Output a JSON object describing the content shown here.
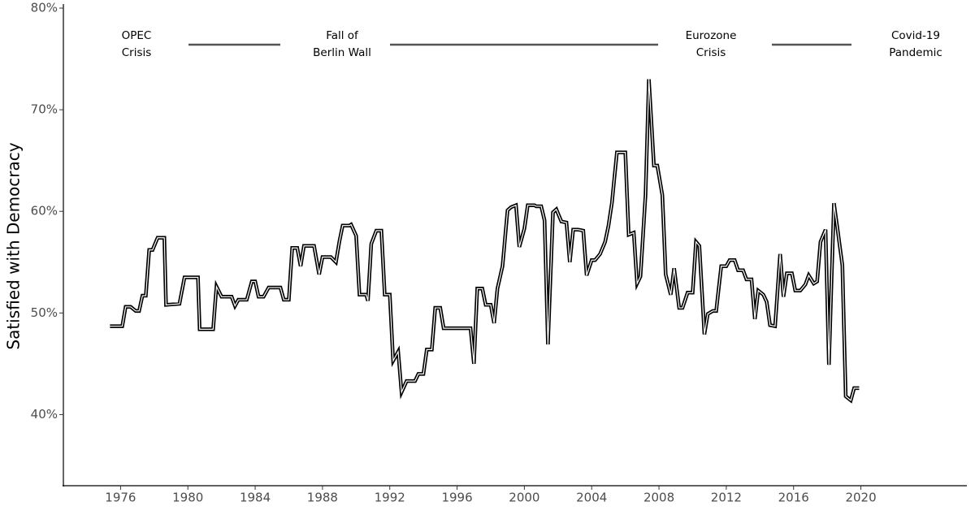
{
  "chart_data": {
    "type": "line",
    "y_label": "Satisfied with Democracy",
    "color": "#000000",
    "x": [
      1975.37,
      1976.1,
      1976.3,
      1976.6,
      1976.9,
      1977.1,
      1977.3,
      1977.5,
      1977.7,
      1977.9,
      1978.2,
      1978.6,
      1978.7,
      1979.5,
      1979.8,
      1980.6,
      1980.7,
      1981.5,
      1981.7,
      1982.0,
      1982.6,
      1982.8,
      1983.0,
      1983.5,
      1983.8,
      1984.0,
      1984.2,
      1984.5,
      1984.8,
      1985.5,
      1985.7,
      1986.0,
      1986.2,
      1986.5,
      1986.7,
      1986.9,
      1987.5,
      1987.8,
      1988.0,
      1988.5,
      1988.8,
      1989.0,
      1989.2,
      1989.6,
      1989.7,
      1990.0,
      1990.2,
      1990.6,
      1990.7,
      1990.9,
      1991.2,
      1991.5,
      1991.7,
      1992.0,
      1992.2,
      1992.5,
      1992.7,
      1993.0,
      1993.5,
      1993.7,
      1994.0,
      1994.2,
      1994.5,
      1994.7,
      1995.0,
      1995.2,
      1996.8,
      1997.0,
      1997.2,
      1997.5,
      1997.7,
      1998.0,
      1998.2,
      1998.4,
      1998.7,
      1999.0,
      1999.2,
      1999.5,
      1999.7,
      2000.0,
      2000.2,
      2000.6,
      2000.7,
      2001.0,
      2001.2,
      2001.4,
      2001.7,
      2001.9,
      2002.2,
      2002.5,
      2002.7,
      2002.9,
      2003.2,
      2003.5,
      2003.7,
      2004.0,
      2004.2,
      2004.5,
      2004.8,
      2005.0,
      2005.2,
      2005.5,
      2006.0,
      2006.2,
      2006.5,
      2006.7,
      2006.9,
      2007.2,
      2007.4,
      2007.7,
      2007.9,
      2008.2,
      2008.4,
      2008.7,
      2008.9,
      2009.2,
      2009.4,
      2009.7,
      2010.0,
      2010.2,
      2010.4,
      2010.7,
      2010.9,
      2011.2,
      2011.4,
      2011.7,
      2012.0,
      2012.2,
      2012.5,
      2012.7,
      2013.0,
      2013.2,
      2013.5,
      2013.7,
      2013.9,
      2014.2,
      2014.4,
      2014.6,
      2014.9,
      2015.2,
      2015.4,
      2015.6,
      2015.9,
      2016.1,
      2016.4,
      2016.7,
      2016.9,
      2017.2,
      2017.4,
      2017.6,
      2017.9,
      2018.1,
      2018.4,
      2018.6,
      2018.9,
      2019.1,
      2019.4,
      2019.6,
      2019.9
    ],
    "values": [
      48.7,
      48.7,
      50.6,
      50.6,
      50.2,
      50.2,
      51.7,
      51.7,
      56.2,
      56.2,
      57.4,
      57.4,
      50.8,
      50.9,
      53.5,
      53.5,
      48.4,
      48.4,
      52.6,
      51.6,
      51.6,
      50.7,
      51.3,
      51.3,
      53.1,
      53.1,
      51.6,
      51.6,
      52.5,
      52.5,
      51.3,
      51.3,
      56.4,
      56.4,
      54.6,
      56.6,
      56.6,
      53.8,
      55.5,
      55.5,
      55.0,
      57.0,
      58.6,
      58.6,
      58.7,
      57.6,
      51.8,
      51.8,
      51.2,
      56.8,
      58.1,
      58.1,
      51.8,
      51.8,
      45.3,
      46.2,
      42.2,
      43.3,
      43.3,
      44.0,
      44.0,
      46.4,
      46.4,
      50.5,
      50.5,
      48.5,
      48.5,
      45.0,
      52.4,
      52.4,
      50.8,
      50.8,
      49.0,
      52.4,
      54.6,
      60.1,
      60.4,
      60.6,
      56.5,
      58.3,
      60.6,
      60.6,
      60.5,
      60.5,
      59.1,
      46.9,
      59.9,
      60.2,
      59.0,
      58.9,
      55.0,
      58.2,
      58.2,
      58.1,
      53.7,
      55.2,
      55.2,
      55.8,
      57.0,
      58.6,
      60.8,
      65.8,
      65.8,
      57.7,
      57.9,
      52.9,
      53.6,
      61.6,
      73.0,
      64.5,
      64.5,
      61.6,
      53.8,
      51.8,
      54.4,
      50.5,
      50.5,
      52.0,
      52.0,
      57.0,
      56.6,
      47.9,
      49.9,
      50.2,
      50.2,
      54.6,
      54.6,
      55.2,
      55.2,
      54.2,
      54.2,
      53.3,
      53.3,
      49.4,
      52.2,
      51.8,
      51.1,
      48.8,
      48.7,
      55.8,
      51.6,
      53.9,
      53.9,
      52.2,
      52.2,
      52.8,
      53.7,
      52.9,
      53.1,
      57.0,
      58.2,
      44.9,
      60.8,
      58.4,
      54.7,
      41.8,
      41.4,
      42.6,
      42.6
    ],
    "xlim": [
      1972.6,
      2026.3
    ],
    "xticks": [
      1976,
      1980,
      1984,
      1988,
      1992,
      1996,
      2000,
      2004,
      2008,
      2012,
      2016,
      2020
    ],
    "ylim": [
      33,
      80
    ],
    "yticks": [
      {
        "value": 40,
        "label": "40%"
      },
      {
        "value": 50,
        "label": "50%"
      },
      {
        "value": 60,
        "label": "60%"
      },
      {
        "value": 70,
        "label": "70%"
      },
      {
        "value": 80,
        "label": "80%"
      }
    ],
    "annotations": [
      [
        "OPEC",
        "Crisis"
      ],
      [
        "Fall of",
        "Berlin Wall"
      ],
      [
        "Eurozone",
        "Crisis"
      ],
      [
        "Covid-19",
        "Pandemic"
      ]
    ]
  }
}
